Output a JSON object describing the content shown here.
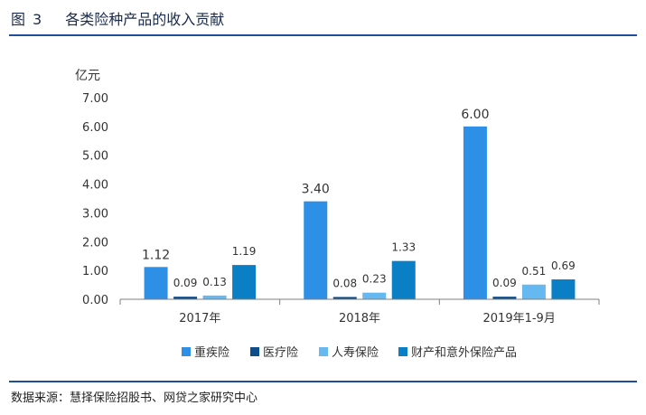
{
  "figure": {
    "label": "图",
    "number": "3",
    "title": "各类险种产品的收入贡献"
  },
  "source": "数据来源：慧择保险招股书、网贷之家研究中心",
  "colors": {
    "rule": "#1f4e9a",
    "axis": "#7f7f7f"
  },
  "chart_data": {
    "type": "bar",
    "ylabel": "亿元",
    "ylim": [
      0,
      7
    ],
    "yticks": [
      "0.00",
      "1.00",
      "2.00",
      "3.00",
      "4.00",
      "5.00",
      "6.00",
      "7.00"
    ],
    "grid": false,
    "legend_position": "bottom",
    "categories": [
      "2017年",
      "2018年",
      "2019年1-9月"
    ],
    "series": [
      {
        "name": "重疾险",
        "color": "#2d8fe6",
        "values": [
          1.12,
          3.4,
          6.0
        ],
        "labels": [
          "1.12",
          "3.40",
          "6.00"
        ]
      },
      {
        "name": "医疗险",
        "color": "#0e4d8c",
        "values": [
          0.09,
          0.08,
          0.09
        ],
        "labels": [
          "0.09",
          "0.08",
          "0.09"
        ]
      },
      {
        "name": "人寿保险",
        "color": "#66b8f0",
        "values": [
          0.13,
          0.23,
          0.51
        ],
        "labels": [
          "0.13",
          "0.23",
          "0.51"
        ]
      },
      {
        "name": "财产和意外保险产品",
        "color": "#0a7fc6",
        "values": [
          1.19,
          1.33,
          0.69
        ],
        "labels": [
          "1.19",
          "1.33",
          "0.69"
        ]
      }
    ]
  }
}
